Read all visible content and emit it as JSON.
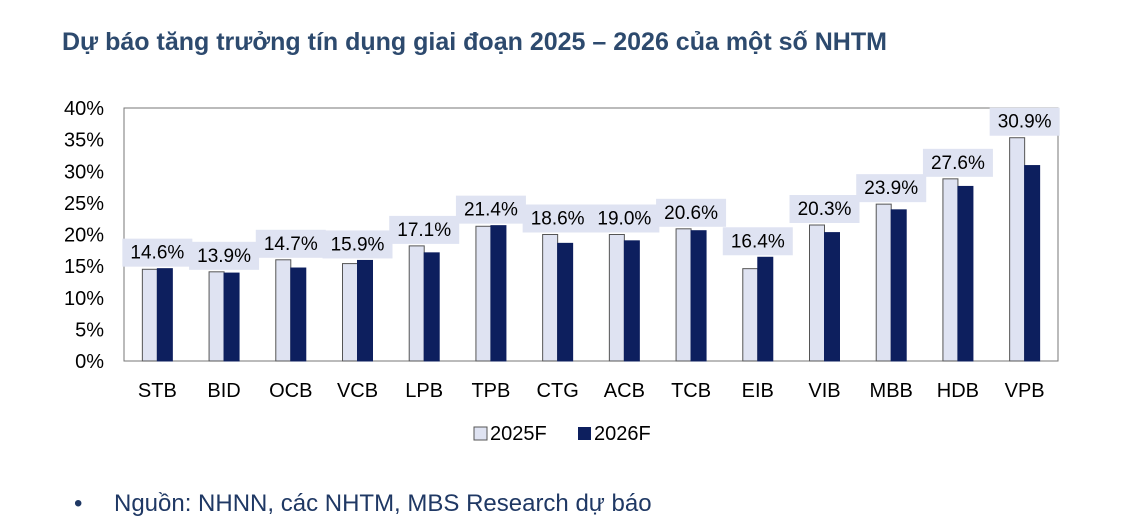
{
  "title": "Dự báo tăng trưởng tín dụng giai đoạn 2025 – 2026 của một số NHTM",
  "chart_data": {
    "type": "bar",
    "title": "Dự báo tăng trưởng tín dụng giai đoạn 2025 – 2026 của một số NHTM",
    "categories": [
      "STB",
      "BID",
      "OCB",
      "VCB",
      "LPB",
      "TPB",
      "CTG",
      "ACB",
      "TCB",
      "EIB",
      "VIB",
      "MBB",
      "HDB",
      "VPB"
    ],
    "series": [
      {
        "name": "2025F",
        "color": "#dfe3f2",
        "values": [
          14.5,
          14.1,
          16.0,
          15.4,
          18.2,
          21.3,
          20.0,
          20.0,
          20.9,
          14.6,
          21.5,
          24.8,
          28.8,
          35.3
        ]
      },
      {
        "name": "2026F",
        "color": "#0d1f5e",
        "values": [
          14.6,
          13.9,
          14.7,
          15.9,
          17.1,
          21.4,
          18.6,
          19.0,
          20.6,
          16.4,
          20.3,
          23.9,
          27.6,
          30.9
        ]
      }
    ],
    "data_labels": [
      "14.6%",
      "13.9%",
      "14.7%",
      "15.9%",
      "17.1%",
      "21.4%",
      "18.6%",
      "19.0%",
      "20.6%",
      "16.4%",
      "20.3%",
      "23.9%",
      "27.6%",
      "30.9%"
    ],
    "y_ticks": [
      "0%",
      "5%",
      "10%",
      "15%",
      "20%",
      "25%",
      "30%",
      "35%",
      "40%"
    ],
    "ylim": [
      0,
      40
    ],
    "xlabel": "",
    "ylabel": "",
    "legend_position": "bottom",
    "grid": false
  },
  "source": {
    "bullet": "•",
    "text": "Nguồn: NHNN, các NHTM, MBS Research dự báo"
  }
}
